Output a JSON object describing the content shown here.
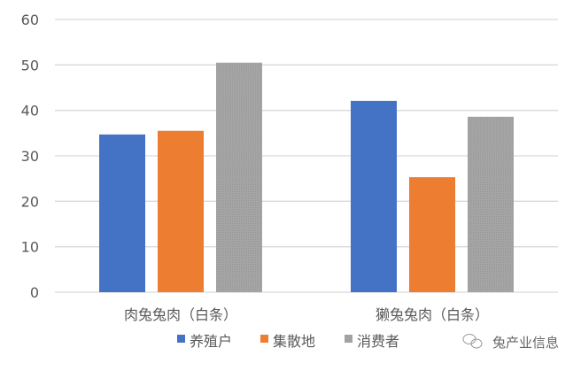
{
  "chart_data": {
    "type": "bar",
    "title": "",
    "xlabel": "",
    "ylabel": "",
    "categories": [
      "肉兔兔肉（白条）",
      "獭兔兔肉（白条）"
    ],
    "series": [
      {
        "name": "养殖户",
        "values": [
          34.7,
          42.1
        ],
        "color": "#4472C4"
      },
      {
        "name": "集散地",
        "values": [
          35.5,
          25.3
        ],
        "color": "#ED7D31"
      },
      {
        "name": "消费者",
        "values": [
          50.5,
          38.6
        ],
        "color": "#A5A5A5"
      }
    ],
    "ylim": [
      0,
      60
    ],
    "yticks": [
      0,
      10,
      20,
      30,
      40,
      50,
      60
    ],
    "grid": true,
    "legend": "bottom"
  },
  "watermark": "兔产业信息"
}
